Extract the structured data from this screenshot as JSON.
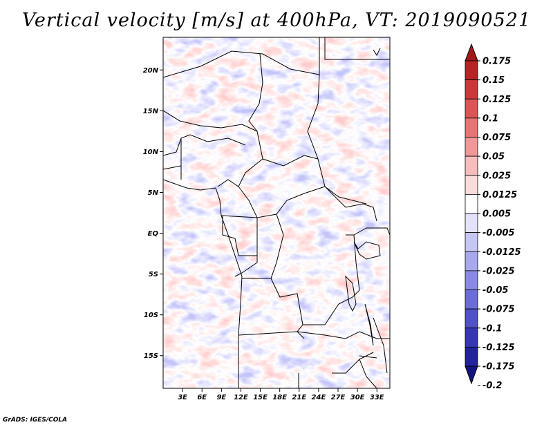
{
  "title": "Vertical velocity [m/s] at 400hPa, VT: 2019090521",
  "map": {
    "lat_range": [
      -19,
      24
    ],
    "lon_range": [
      0,
      35
    ],
    "lat_ticks": [
      {
        "value": 20,
        "label": "20N"
      },
      {
        "value": 15,
        "label": "15N"
      },
      {
        "value": 10,
        "label": "10N"
      },
      {
        "value": 5,
        "label": "5N"
      },
      {
        "value": 0,
        "label": "EQ"
      },
      {
        "value": -5,
        "label": "5S"
      },
      {
        "value": -10,
        "label": "10S"
      },
      {
        "value": -15,
        "label": "15S"
      }
    ],
    "lon_ticks": [
      {
        "value": 3,
        "label": "3E"
      },
      {
        "value": 6,
        "label": "6E"
      },
      {
        "value": 9,
        "label": "9E"
      },
      {
        "value": 12,
        "label": "12E"
      },
      {
        "value": 15,
        "label": "15E"
      },
      {
        "value": 18,
        "label": "18E"
      },
      {
        "value": 21,
        "label": "21E"
      },
      {
        "value": 24,
        "label": "24E"
      },
      {
        "value": 27,
        "label": "27E"
      },
      {
        "value": 30,
        "label": "30E"
      },
      {
        "value": 33,
        "label": "33E"
      }
    ]
  },
  "colorbar": {
    "levels": [
      "0.175",
      "0.15",
      "0.125",
      "0.1",
      "0.075",
      "0.05",
      "0.025",
      "0.0125",
      "0.005",
      "-0.005",
      "-0.0125",
      "-0.025",
      "-0.05",
      "-0.075",
      "-0.1",
      "-0.125",
      "-0.175",
      "-0.2"
    ],
    "colors": [
      "#a01818",
      "#b82424",
      "#cc3838",
      "#dc5454",
      "#e87474",
      "#f09898",
      "#f7bcbc",
      "#fbdcdc",
      "#ffffff",
      "#e2e2fb",
      "#c6c6f5",
      "#a8a8ee",
      "#8a8ae4",
      "#6c6cd8",
      "#5050c8",
      "#3636b4",
      "#22229c",
      "#141480"
    ]
  },
  "credit": "GrADS: IGES/COLA"
}
